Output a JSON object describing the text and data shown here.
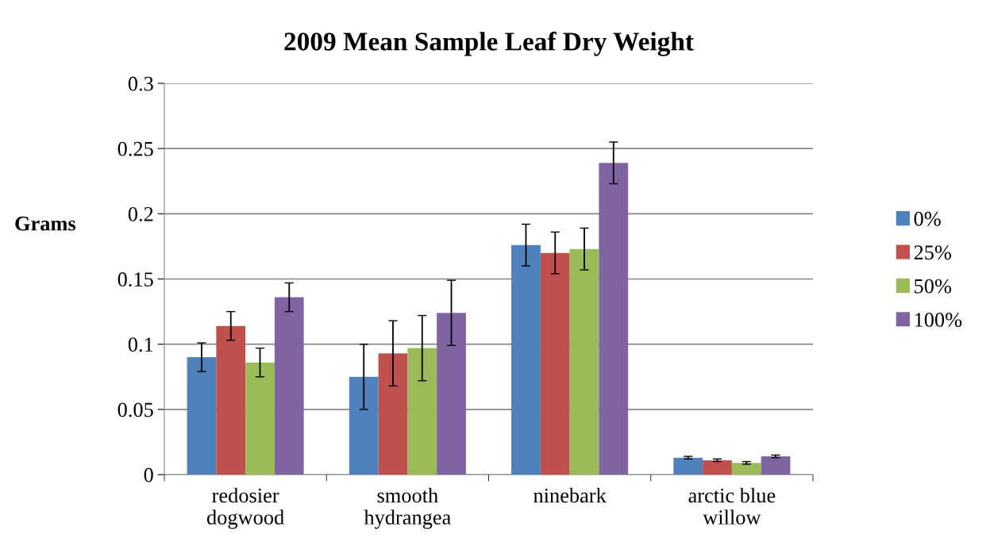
{
  "chart_data": {
    "type": "bar",
    "title": "2009 Mean Sample Leaf Dry Weight",
    "ylabel": "Grams",
    "categories": [
      "redosier\ndogwood",
      "smooth\nhydrangea",
      "ninebark",
      "arctic blue\nwillow"
    ],
    "series": [
      {
        "name": "0%",
        "color": "#4f81bd",
        "values": [
          0.09,
          0.075,
          0.176,
          0.013
        ],
        "errors": [
          0.011,
          0.025,
          0.016,
          0.001
        ]
      },
      {
        "name": "25%",
        "color": "#c0504d",
        "values": [
          0.114,
          0.093,
          0.17,
          0.011
        ],
        "errors": [
          0.011,
          0.025,
          0.016,
          0.001
        ]
      },
      {
        "name": "50%",
        "color": "#9bbb59",
        "values": [
          0.086,
          0.097,
          0.173,
          0.009
        ],
        "errors": [
          0.011,
          0.025,
          0.016,
          0.001
        ]
      },
      {
        "name": "100%",
        "color": "#8064a2",
        "values": [
          0.136,
          0.124,
          0.239,
          0.014
        ],
        "errors": [
          0.011,
          0.025,
          0.016,
          0.001
        ]
      }
    ],
    "ylim": [
      0,
      0.3
    ],
    "yticks": [
      0,
      0.05,
      0.1,
      0.15,
      0.2,
      0.25,
      0.3
    ],
    "grid": "y",
    "legend": "right"
  }
}
